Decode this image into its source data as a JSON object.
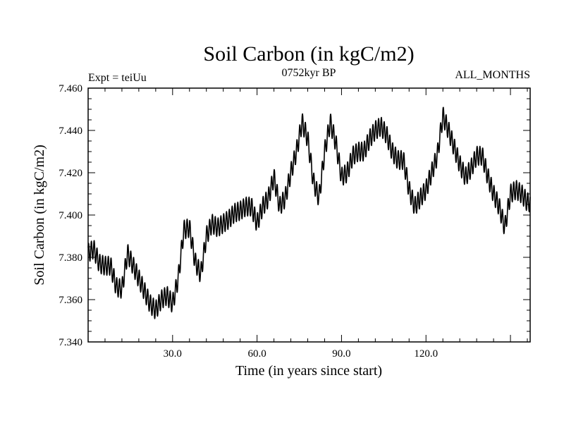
{
  "chart_data": {
    "type": "line",
    "title": "Soil Carbon (in kgC/m2)",
    "subtitle_left": "Expt = teiUu",
    "subtitle_center": "0752kyr BP",
    "subtitle_right": "ALL_MONTHS",
    "xlabel": "Time (in years since start)",
    "ylabel": "Soil Carbon (in kgC/m2)",
    "xlim": [
      0,
      157
    ],
    "ylim": [
      7.34,
      7.46
    ],
    "x_ticks": [
      30,
      60,
      90,
      120
    ],
    "x_tick_labels": [
      "30.0",
      "60.0",
      "90.0",
      "120.0"
    ],
    "y_ticks": [
      7.34,
      7.36,
      7.38,
      7.4,
      7.42,
      7.44,
      7.46
    ],
    "y_tick_labels": [
      "7.340",
      "7.360",
      "7.380",
      "7.400",
      "7.420",
      "7.440",
      "7.460"
    ],
    "seasonal_amplitude": 0.0045,
    "series": [
      {
        "name": "Soil Carbon",
        "x": [
          0,
          2,
          4,
          6,
          8,
          10,
          12,
          14,
          16,
          18,
          20,
          22,
          24,
          26,
          28,
          30,
          32,
          34,
          36,
          38,
          40,
          42,
          44,
          46,
          48,
          50,
          52,
          54,
          56,
          58,
          60,
          62,
          64,
          66,
          68,
          70,
          72,
          74,
          76,
          78,
          80,
          82,
          84,
          86,
          88,
          90,
          92,
          94,
          96,
          98,
          100,
          102,
          104,
          106,
          108,
          110,
          112,
          114,
          116,
          118,
          120,
          122,
          124,
          126,
          128,
          130,
          132,
          134,
          136,
          138,
          140,
          142,
          144,
          146,
          148,
          150,
          152,
          154,
          156,
          157
        ],
        "values": [
          7.382,
          7.384,
          7.377,
          7.376,
          7.376,
          7.366,
          7.365,
          7.382,
          7.376,
          7.37,
          7.364,
          7.358,
          7.355,
          7.36,
          7.362,
          7.358,
          7.37,
          7.393,
          7.394,
          7.378,
          7.372,
          7.39,
          7.396,
          7.394,
          7.396,
          7.398,
          7.401,
          7.402,
          7.404,
          7.404,
          7.396,
          7.404,
          7.408,
          7.418,
          7.404,
          7.408,
          7.42,
          7.43,
          7.444,
          7.436,
          7.416,
          7.408,
          7.43,
          7.444,
          7.434,
          7.418,
          7.42,
          7.428,
          7.43,
          7.43,
          7.436,
          7.44,
          7.442,
          7.438,
          7.43,
          7.426,
          7.426,
          7.412,
          7.404,
          7.408,
          7.412,
          7.42,
          7.428,
          7.447,
          7.44,
          7.432,
          7.424,
          7.418,
          7.422,
          7.428,
          7.428,
          7.418,
          7.41,
          7.404,
          7.394,
          7.41,
          7.412,
          7.41,
          7.406,
          7.406
        ]
      }
    ]
  }
}
